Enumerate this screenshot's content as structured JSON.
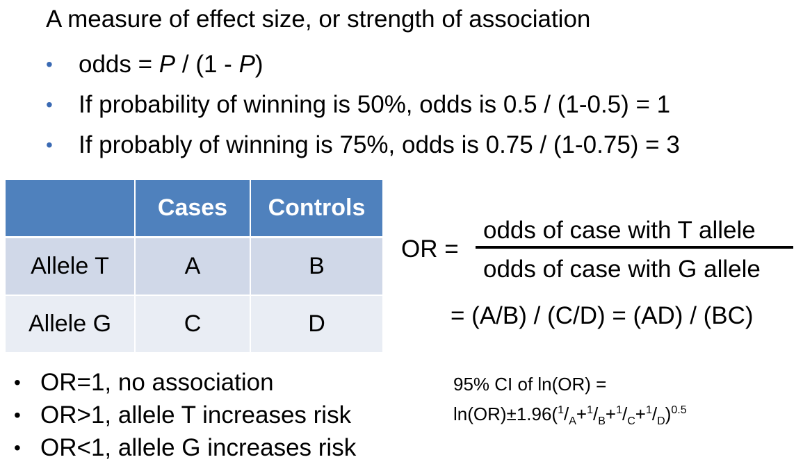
{
  "heading": "A measure of effect size, or strength of association",
  "top_bullets": {
    "odds_prefix": "odds = ",
    "odds_p1": "P",
    "odds_mid": " / (1 - ",
    "odds_p2": "P",
    "odds_suffix": ")",
    "item2": "If probability of winning is 50%, odds is 0.5 / (1-0.5) = 1",
    "item3": "If probably of winning is 75%, odds is 0.75 / (1-0.75) = 3",
    "bullet_color": "#3a6ab3"
  },
  "table": {
    "header": [
      "",
      "Cases",
      "Controls"
    ],
    "rows": [
      [
        "Allele T",
        "A",
        "B"
      ],
      [
        "Allele G",
        "C",
        "D"
      ]
    ],
    "header_color": "#4f81bd",
    "row1_color": "#d0d8e8",
    "row2_color": "#e9edf4"
  },
  "formula": {
    "lhs": "OR =",
    "numerator": "odds of case with T allele",
    "denominator": "odds of case with G allele",
    "equivalent": "= (A/B) / (C/D) = (AD) / (BC)"
  },
  "bottom_bullets": [
    "OR=1, no association",
    "OR>1, allele T increases risk",
    "OR<1, allele G increases risk"
  ],
  "ci": {
    "title": "95% CI of ln(OR) =",
    "prefix": "ln(OR)±1.96(",
    "one": "1",
    "a": "A",
    "b": "B",
    "c": "C",
    "d": "D",
    "plus": "+",
    "slash": "/",
    "close": ")",
    "exponent": "0.5"
  }
}
